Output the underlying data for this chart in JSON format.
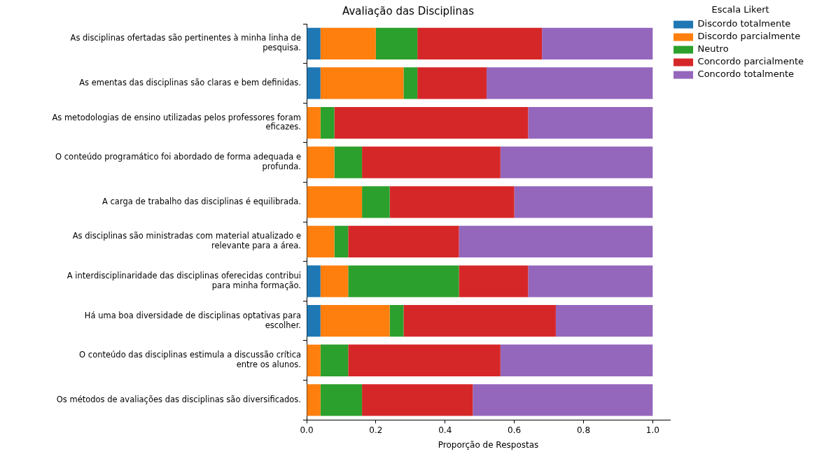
{
  "chart_data": {
    "type": "bar",
    "orientation": "horizontal",
    "stacked": true,
    "title": "Avaliação das Disciplinas",
    "xlabel": "Proporção de Respostas",
    "legend_title": "Escala Likert",
    "legend": "right",
    "categories": [
      "As disciplinas ofertadas são pertinentes à minha linha de pesquisa.",
      "As ementas das disciplinas são claras e bem definidas.",
      "As metodologias de ensino utilizadas pelos professores foram eficazes.",
      "O conteúdo programático foi abordado de forma adequada e profunda.",
      "A carga de trabalho das disciplinas é equilibrada.",
      "As disciplinas são ministradas com material atualizado e relevante para a área.",
      "A interdisciplinaridade das disciplinas oferecidas contribui para minha formação.",
      "Há uma boa diversidade de disciplinas optativas para escolher.",
      "O conteúdo das disciplinas estimula a discussão crítica entre os alunos.",
      "Os métodos de avaliações das disciplinas são diversificados."
    ],
    "series": [
      {
        "name": "Discordo totalmente",
        "color": "#1f77b4",
        "values": [
          0.04,
          0.04,
          0,
          0,
          0,
          0,
          0.04,
          0.04,
          0,
          0
        ]
      },
      {
        "name": "Discordo parcialmente",
        "color": "#ff7f0e",
        "values": [
          0.16,
          0.24,
          0.04,
          0.08,
          0.16,
          0.08,
          0.08,
          0.2,
          0.04,
          0.04
        ]
      },
      {
        "name": "Neutro",
        "color": "#2ca02c",
        "values": [
          0.12,
          0.04,
          0.04,
          0.08,
          0.08,
          0.04,
          0.32,
          0.04,
          0.08,
          0.12
        ]
      },
      {
        "name": "Concordo parcialmente",
        "color": "#d62728",
        "values": [
          0.36,
          0.2,
          0.56,
          0.4,
          0.36,
          0.32,
          0.2,
          0.44,
          0.44,
          0.32
        ]
      },
      {
        "name": "Concordo totalmente",
        "color": "#9467bd",
        "values": [
          0.32,
          0.48,
          0.36,
          0.44,
          0.4,
          0.56,
          0.36,
          0.28,
          0.44,
          0.52
        ]
      }
    ],
    "xlim": [
      0,
      1.05
    ],
    "xticks": [
      {
        "value": 0,
        "label": "0.0"
      },
      {
        "value": 0.2,
        "label": "0.2"
      },
      {
        "value": 0.4,
        "label": "0.4"
      },
      {
        "value": 0.6,
        "label": "0.6"
      },
      {
        "value": 0.8,
        "label": "0.8"
      },
      {
        "value": 1,
        "label": "1.0"
      }
    ],
    "grid": false
  }
}
